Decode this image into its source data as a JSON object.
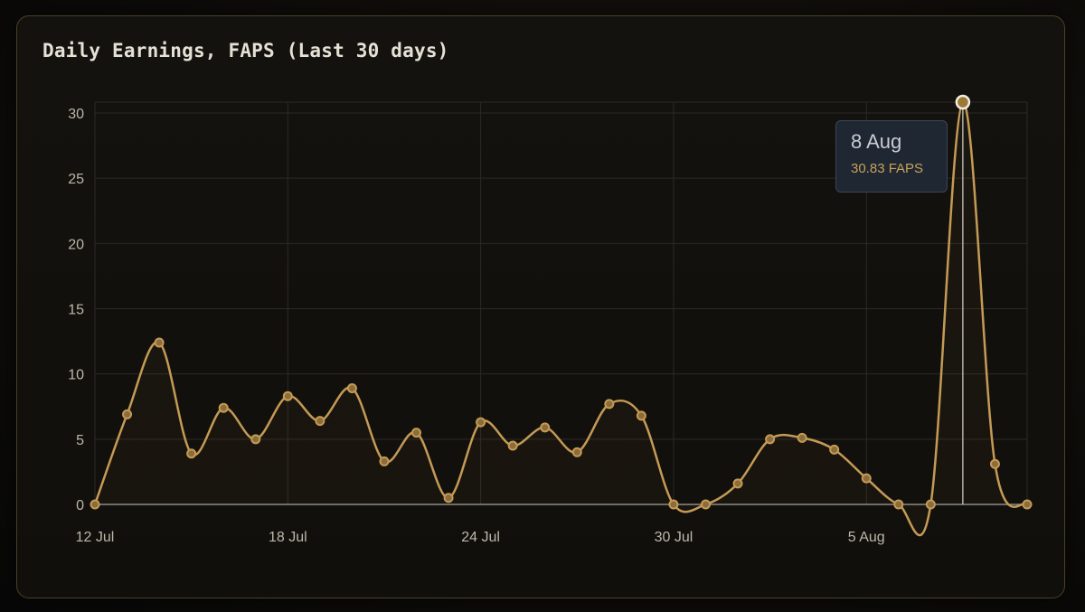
{
  "card": {
    "title": "Daily Earnings, FAPS (Last 30 days)"
  },
  "tooltip": {
    "date": "8 Aug",
    "value": "30.83 FAPS"
  },
  "colors": {
    "line": "#c49a55",
    "point_fill": "#8a6d3a",
    "grid": "#2c2a26",
    "axis": "#8f8b85",
    "highlight_point_fill": "#9a7a35",
    "highlight_point_stroke": "#f2ede2",
    "crosshair": "#d8d4cc"
  },
  "chart_data": {
    "type": "line",
    "title": "Daily Earnings, FAPS (Last 30 days)",
    "xlabel": "",
    "ylabel": "",
    "ylim": [
      0,
      30.83
    ],
    "y_ticks": [
      0,
      5,
      10,
      15,
      20,
      25,
      30
    ],
    "x_tick_labels": [
      {
        "index": 0,
        "label": "12 Jul"
      },
      {
        "index": 6,
        "label": "18 Jul"
      },
      {
        "index": 12,
        "label": "24 Jul"
      },
      {
        "index": 18,
        "label": "30 Jul"
      },
      {
        "index": 24,
        "label": "5 Aug"
      }
    ],
    "x": [
      "12 Jul",
      "13 Jul",
      "14 Jul",
      "15 Jul",
      "16 Jul",
      "17 Jul",
      "18 Jul",
      "19 Jul",
      "20 Jul",
      "21 Jul",
      "22 Jul",
      "23 Jul",
      "24 Jul",
      "25 Jul",
      "26 Jul",
      "27 Jul",
      "28 Jul",
      "29 Jul",
      "30 Jul",
      "31 Jul",
      "1 Aug",
      "2 Aug",
      "3 Aug",
      "4 Aug",
      "5 Aug",
      "6 Aug",
      "7 Aug",
      "8 Aug",
      "9 Aug",
      "10 Aug"
    ],
    "series": [
      {
        "values": [
          0,
          6.9,
          12.4,
          3.9,
          7.4,
          5.0,
          8.3,
          6.4,
          8.9,
          3.3,
          5.5,
          0.5,
          6.3,
          4.5,
          5.9,
          4.0,
          7.7,
          6.8,
          0,
          0,
          1.6,
          5.0,
          5.1,
          4.2,
          2.0,
          0,
          0,
          30.83,
          3.1,
          0
        ]
      }
    ],
    "highlight": {
      "index": 27
    },
    "grid": true,
    "legend": "none"
  }
}
